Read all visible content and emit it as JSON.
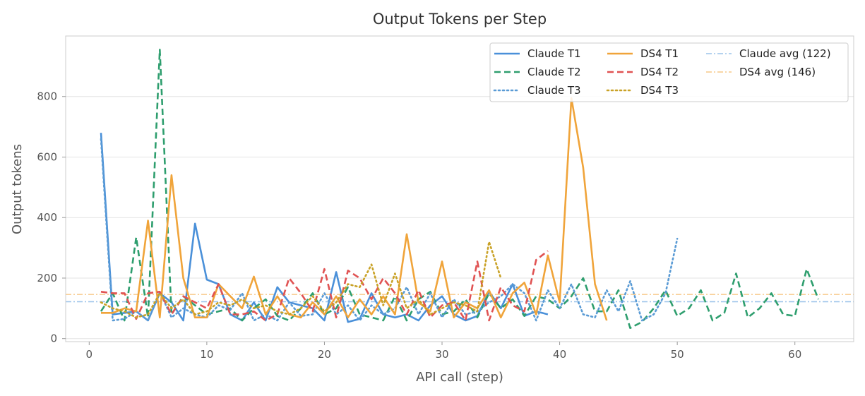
{
  "chart_data": {
    "type": "line",
    "title": "Output Tokens per Step",
    "xlabel": "API call (step)",
    "ylabel": "Output tokens",
    "xlim": [
      -2,
      65
    ],
    "ylim": [
      -10,
      1000
    ],
    "xticks": [
      0,
      10,
      20,
      30,
      40,
      50,
      60
    ],
    "yticks": [
      0,
      200,
      400,
      600,
      800
    ],
    "grid": "horizontal",
    "legend_position": "top-right",
    "series": [
      {
        "name": "Claude T1",
        "color": "#4a90d9",
        "dash": "solid",
        "x": [
          1,
          2,
          3,
          4,
          5,
          6,
          7,
          8,
          9,
          10,
          11,
          12,
          13,
          14,
          15,
          16,
          17,
          18,
          19,
          20,
          21,
          22,
          23,
          24,
          25,
          26,
          27,
          28,
          29,
          30,
          31,
          32,
          33,
          34,
          35,
          36,
          37,
          38,
          39
        ],
        "y": [
          680,
          80,
          85,
          90,
          60,
          150,
          120,
          60,
          380,
          195,
          180,
          80,
          60,
          120,
          60,
          170,
          120,
          110,
          100,
          60,
          220,
          55,
          65,
          150,
          80,
          70,
          80,
          60,
          110,
          140,
          80,
          60,
          75,
          155,
          100,
          180,
          75,
          90,
          80
        ]
      },
      {
        "name": "Claude T2",
        "color": "#2e9e6e",
        "dash": "dashed",
        "x": [
          1,
          2,
          3,
          4,
          5,
          6,
          7,
          8,
          9,
          10,
          11,
          12,
          13,
          14,
          15,
          16,
          17,
          18,
          19,
          20,
          21,
          22,
          23,
          24,
          25,
          26,
          27,
          28,
          29,
          30,
          31,
          32,
          33,
          34,
          35,
          36,
          37,
          38,
          39,
          40,
          41,
          42,
          43,
          44,
          45,
          46,
          47,
          48,
          49,
          50,
          51,
          52,
          53,
          54,
          55,
          56,
          57,
          58,
          59,
          60,
          61,
          62
        ],
        "y": [
          90,
          150,
          60,
          335,
          70,
          955,
          80,
          140,
          110,
          80,
          90,
          100,
          60,
          100,
          130,
          75,
          60,
          100,
          150,
          80,
          100,
          170,
          80,
          70,
          60,
          140,
          60,
          130,
          155,
          80,
          90,
          130,
          70,
          150,
          100,
          130,
          75,
          140,
          130,
          100,
          140,
          200,
          90,
          90,
          160,
          35,
          55,
          100,
          160,
          75,
          100,
          160,
          60,
          85,
          215,
          70,
          100,
          150,
          80,
          75,
          230,
          130
        ]
      },
      {
        "name": "Claude T3",
        "color": "#5a9bd5",
        "dash": "dotted",
        "x": [
          1,
          2,
          3,
          4,
          5,
          6,
          7,
          8,
          9,
          10,
          11,
          12,
          13,
          14,
          15,
          16,
          17,
          18,
          19,
          20,
          21,
          22,
          23,
          24,
          25,
          26,
          27,
          28,
          29,
          30,
          31,
          32,
          33,
          34,
          35,
          36,
          37,
          38,
          39,
          40,
          41,
          42,
          43,
          44,
          45,
          46,
          47,
          48,
          49,
          50
        ],
        "y": [
          660,
          60,
          65,
          90,
          60,
          155,
          70,
          100,
          80,
          70,
          110,
          95,
          150,
          60,
          80,
          60,
          120,
          75,
          80,
          150,
          80,
          110,
          60,
          110,
          80,
          100,
          170,
          80,
          150,
          70,
          130,
          80,
          90,
          120,
          140,
          180,
          150,
          60,
          160,
          100,
          180,
          80,
          70,
          160,
          90,
          190,
          60,
          80,
          150,
          330
        ]
      },
      {
        "name": "DS4 T1",
        "color": "#f0a43a",
        "dash": "solid",
        "x": [
          1,
          2,
          3,
          4,
          5,
          6,
          7,
          8,
          9,
          10,
          11,
          12,
          13,
          14,
          15,
          16,
          17,
          18,
          19,
          20,
          21,
          22,
          23,
          24,
          25,
          26,
          27,
          28,
          29,
          30,
          31,
          32,
          33,
          34,
          35,
          36,
          37,
          38,
          39,
          40,
          41,
          42,
          43,
          44
        ],
        "y": [
          85,
          85,
          100,
          90,
          390,
          70,
          540,
          200,
          70,
          70,
          180,
          140,
          100,
          205,
          80,
          140,
          80,
          70,
          120,
          80,
          140,
          70,
          130,
          80,
          140,
          80,
          345,
          120,
          90,
          255,
          70,
          120,
          100,
          160,
          70,
          150,
          185,
          80,
          275,
          120,
          795,
          565,
          180,
          60
        ]
      },
      {
        "name": "DS4 T2",
        "color": "#e05252",
        "dash": "dashed",
        "x": [
          1,
          2,
          3,
          4,
          5,
          6,
          7,
          8,
          9,
          10,
          11,
          12,
          13,
          14,
          15,
          16,
          17,
          18,
          19,
          20,
          21,
          22,
          23,
          24,
          25,
          26,
          27,
          28,
          29,
          30,
          31,
          32,
          33,
          34,
          35,
          36,
          37,
          38,
          39
        ],
        "y": [
          155,
          150,
          150,
          65,
          150,
          155,
          80,
          140,
          120,
          100,
          180,
          80,
          80,
          90,
          60,
          80,
          200,
          150,
          90,
          230,
          70,
          225,
          200,
          130,
          200,
          150,
          80,
          160,
          70,
          110,
          120,
          60,
          255,
          60,
          170,
          110,
          90,
          260,
          290
        ]
      },
      {
        "name": "DS4 T3",
        "color": "#c9a227",
        "dash": "dotted",
        "x": [
          1,
          2,
          3,
          4,
          5,
          6,
          7,
          8,
          9,
          10,
          11,
          12,
          13,
          14,
          15,
          16,
          17,
          18,
          19,
          20,
          21,
          22,
          23,
          24,
          25,
          26,
          27,
          28,
          29,
          30,
          31,
          32,
          33,
          34,
          35
        ],
        "y": [
          120,
          100,
          90,
          70,
          80,
          150,
          100,
          130,
          80,
          90,
          120,
          110,
          130,
          100,
          110,
          90,
          80,
          100,
          140,
          90,
          120,
          180,
          170,
          245,
          110,
          215,
          100,
          130,
          80,
          100,
          120,
          110,
          90,
          320,
          200
        ]
      },
      {
        "name": "Claude avg (122)",
        "color": "#9cc3ea",
        "dash": "dashdot",
        "hline": 122
      },
      {
        "name": "DS4 avg (146)",
        "color": "#f7c98a",
        "dash": "dashdot",
        "hline": 146
      }
    ]
  }
}
